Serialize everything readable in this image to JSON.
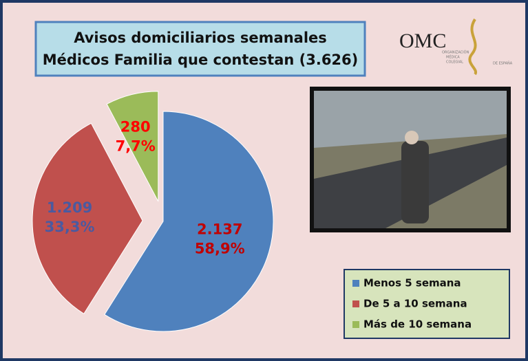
{
  "chart_data": {
    "type": "pie",
    "title": "Avisos domiciliarios semanales",
    "subtitle": "Médicos Familia  que contestan  (3.626)",
    "categories": [
      "Menos 5 semana",
      "De 5 a 10 semana",
      "Más de 10 semana"
    ],
    "values": [
      2137,
      1209,
      280
    ],
    "value_labels": [
      "2.137",
      "1.209",
      "280"
    ],
    "percents": [
      58.9,
      33.3,
      7.7
    ],
    "percent_labels": [
      "58,9%",
      "33,3%",
      "7,7%"
    ],
    "colors": [
      "#4f81bd",
      "#c0504d",
      "#9bbb59"
    ],
    "label_colors": [
      "#c00000",
      "#4a5aa0",
      "#ff0000"
    ],
    "legend": "bottom-right"
  },
  "logo": {
    "text": "OMC",
    "lines": [
      "ORGANIZACIÓN",
      "MÉDICA",
      "COLEGIAL",
      "DE ESPAÑA"
    ]
  }
}
